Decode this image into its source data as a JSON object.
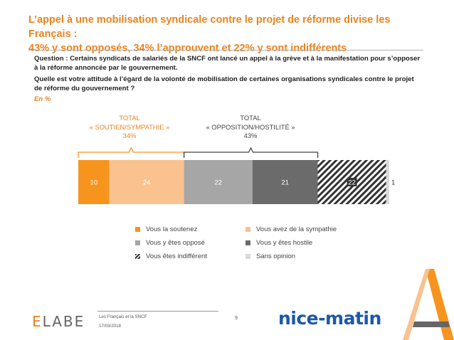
{
  "title_line1": "L’appel à une mobilisation syndicale contre le projet de réforme divise les Français :",
  "title_line2": "43% y sont opposés, 34% l’approuvent et 22% y sont indifférents",
  "question1": "Question : Certains syndicats de salariés de la SNCF ont lancé un appel à la grève et à la manifestation pour s’opposer à la réforme annoncée par le gouvernement.",
  "question2": "Quelle est votre attitude à l’égard de la volonté de mobilisation de certaines organisations syndicales contre le projet de réforme du gouvernement ?",
  "unit_label": "En %",
  "totals": {
    "support_line1": "TOTAL",
    "support_line2": "« SOUTIEN/SYMPATHIE »",
    "support_value": "34%",
    "opposition_line1": "TOTAL",
    "opposition_line2": "« OPPOSITION/HOSTILITÉ »",
    "opposition_value": "43%"
  },
  "chart_data": {
    "type": "bar",
    "orientation": "horizontal-stacked",
    "series": [
      {
        "name": "Vous la soutenez",
        "value": 10,
        "color": "#F7941D"
      },
      {
        "name": "Vous avez de la sympathie",
        "value": 24,
        "color": "#F9C28F"
      },
      {
        "name": "Vous y êtes opposé",
        "value": 22,
        "color": "#A6A6A6"
      },
      {
        "name": "Vous y êtes hostile",
        "value": 21,
        "color": "#6B6B6B"
      },
      {
        "name": "Vous êtes indifférent",
        "value": 22,
        "color": "#333333",
        "pattern": "hatch"
      },
      {
        "name": "Sans opinion",
        "value": 1,
        "color": "#D9D9D9"
      }
    ],
    "groups": [
      {
        "name": "TOTAL « SOUTIEN/SYMPATHIE »",
        "value": 34
      },
      {
        "name": "TOTAL « OPPOSITION/HOSTILITÉ »",
        "value": 43
      }
    ],
    "total": 100,
    "legend_position": "bottom"
  },
  "footer": {
    "source": "Les Français et la SNCF",
    "date": "17/03/2018",
    "page": "9",
    "logo_left": "ELABE",
    "logo_right": "nice-matin"
  }
}
